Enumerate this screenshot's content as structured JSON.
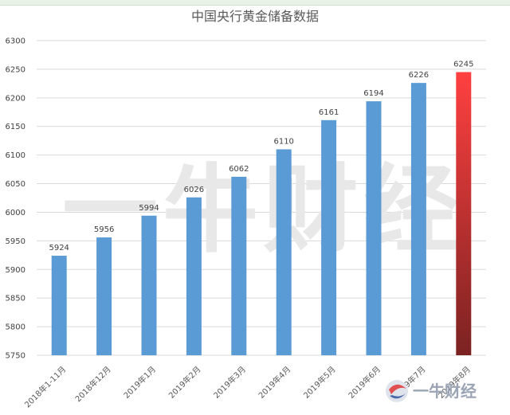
{
  "chart_data": {
    "type": "bar",
    "title": "中国央行黄金储备数据",
    "categories": [
      "2018年1-11月",
      "2018年12月",
      "2019年1月",
      "2019年2月",
      "2019年3月",
      "2019年4月",
      "2019年5月",
      "2019年6月",
      "2019年7月",
      "2019年8月"
    ],
    "values": [
      5924,
      5956,
      5994,
      6026,
      6062,
      6110,
      6161,
      6194,
      6226,
      6245
    ],
    "ylim": [
      5750,
      6300
    ],
    "yticks": [
      5750,
      5800,
      5850,
      5900,
      5950,
      6000,
      6050,
      6100,
      6150,
      6200,
      6250,
      6300
    ],
    "grid": true,
    "colors": {
      "bar": "#5b9bd5",
      "highlight_top": "#ff4040",
      "highlight_bottom": "#7b2222"
    },
    "highlight_index": 9
  },
  "watermark": {
    "text": "一牛财经",
    "logo_text": "一牛财经"
  }
}
